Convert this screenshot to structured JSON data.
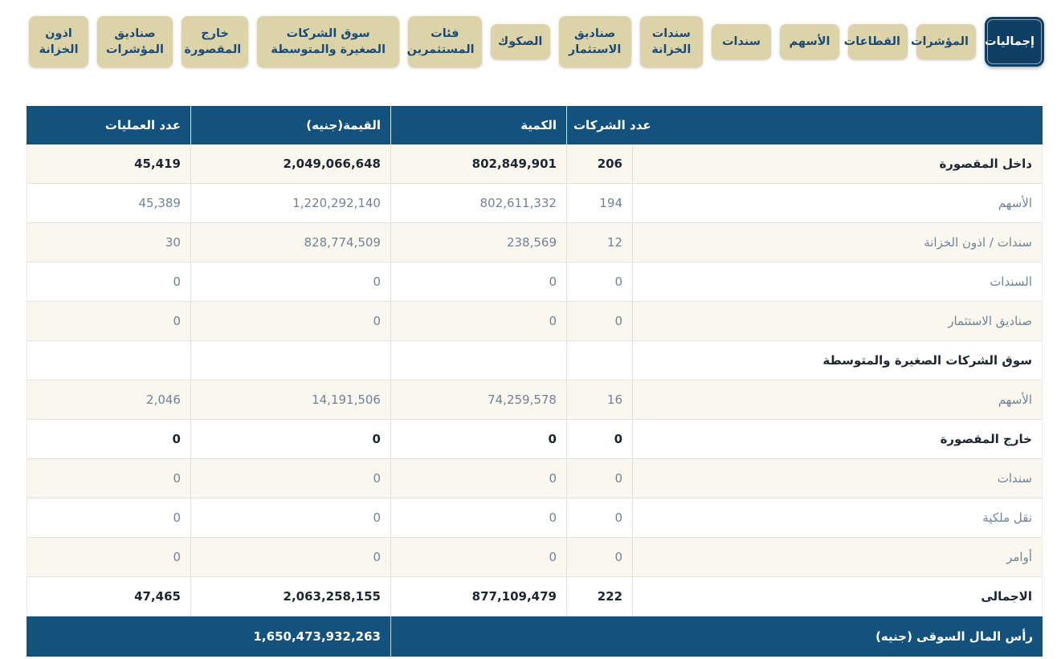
{
  "tabs": [
    {
      "label": "إجماليات",
      "active": true
    },
    {
      "label": "المؤشرات",
      "active": false
    },
    {
      "label": "القطاعات",
      "active": false
    },
    {
      "label": "الأسهم",
      "active": false
    },
    {
      "label": "سندات",
      "active": false
    },
    {
      "label": "سندات الخزانة",
      "active": false
    },
    {
      "label": "صناديق الاستثمار",
      "active": false
    },
    {
      "label": "الصكوك",
      "active": false
    },
    {
      "label": "فئات المستثمرين",
      "active": false
    },
    {
      "label": "سوق الشركات الصغيرة والمتوسطة",
      "active": false
    },
    {
      "label": "خارج المقصورة",
      "active": false
    },
    {
      "label": "صناديق المؤشرات",
      "active": false
    },
    {
      "label": "اذون الخزانة",
      "active": false
    }
  ],
  "table": {
    "headers": {
      "companies": "عدد الشركات",
      "quantity": "الكمية",
      "value": "القيمة(جنيه)",
      "trades": "عدد العمليات"
    },
    "rows": [
      {
        "label": "داخل المقصورة",
        "companies": "206",
        "quantity": "802,849,901",
        "value": "2,049,066,648",
        "trades": "45,419"
      },
      {
        "label": "الأسهم",
        "companies": "194",
        "quantity": "802,611,332",
        "value": "1,220,292,140",
        "trades": "45,389"
      },
      {
        "label": "سندات / اذون الخزانة",
        "companies": "12",
        "quantity": "238,569",
        "value": "828,774,509",
        "trades": "30"
      },
      {
        "label": "السندات",
        "companies": "0",
        "quantity": "0",
        "value": "0",
        "trades": "0"
      },
      {
        "label": "صناديق الاستثمار",
        "companies": "0",
        "quantity": "0",
        "value": "0",
        "trades": "0"
      },
      {
        "label": "سوق الشركات الصغيرة والمتوسطة",
        "companies": "",
        "quantity": "",
        "value": "",
        "trades": ""
      },
      {
        "label": "الأسهم",
        "companies": "16",
        "quantity": "74,259,578",
        "value": "14,191,506",
        "trades": "2,046"
      },
      {
        "label": "خارج المقصورة",
        "companies": "0",
        "quantity": "0",
        "value": "0",
        "trades": "0"
      },
      {
        "label": "سندات",
        "companies": "0",
        "quantity": "0",
        "value": "0",
        "trades": "0"
      },
      {
        "label": "نقل ملكية",
        "companies": "0",
        "quantity": "0",
        "value": "0",
        "trades": "0"
      },
      {
        "label": "أوامر",
        "companies": "0",
        "quantity": "0",
        "value": "0",
        "trades": "0"
      },
      {
        "label": "الاجمالى",
        "companies": "222",
        "quantity": "877,109,479",
        "value": "2,063,258,155",
        "trades": "47,465"
      }
    ],
    "footer": {
      "label": "رأس المال السوقى (جنيه)",
      "value": "1,650,473,932,263"
    }
  },
  "colors": {
    "header_blue": "#14527E",
    "active_tab_navy": "#0E3E63",
    "tab_beige": "#DCD3A9",
    "tab_text_blue": "#1C4B77",
    "row_cream": "#FAF7EF",
    "muted_text": "#71839A",
    "strong_text": "#1D2733",
    "grid_line": "#E4E1DA"
  }
}
